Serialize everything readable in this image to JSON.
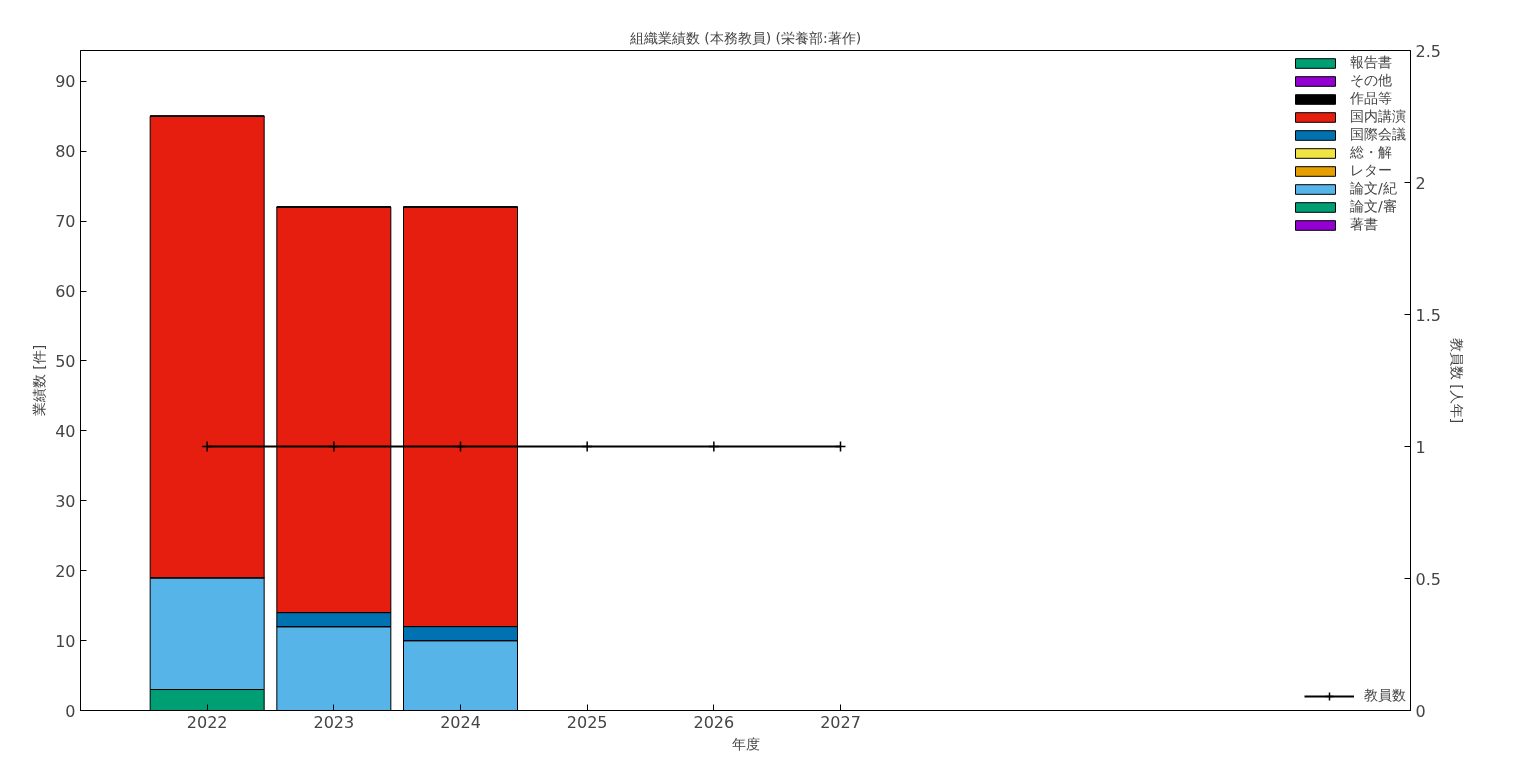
{
  "chart_data": {
    "type": "bar",
    "title": "組織業績数 (本務教員) (栄養部:著作)",
    "xlabel": "年度",
    "ylabel": "業績数 [件]",
    "y2label": "教員数 [人年]",
    "x": [
      2022,
      2023,
      2024
    ],
    "stacked": true,
    "series": [
      {
        "name": "著書",
        "color": "#9400d3",
        "values": [
          0,
          0,
          0
        ]
      },
      {
        "name": "論文/審",
        "color": "#009e73",
        "values": [
          3,
          0,
          0
        ]
      },
      {
        "name": "論文/紀",
        "color": "#56b4e9",
        "values": [
          16,
          12,
          10
        ]
      },
      {
        "name": "レター",
        "color": "#e69f00",
        "values": [
          0,
          0,
          0
        ]
      },
      {
        "name": "総・解",
        "color": "#f0e442",
        "values": [
          0,
          0,
          0
        ]
      },
      {
        "name": "国際会議",
        "color": "#0072b2",
        "values": [
          0,
          2,
          2
        ]
      },
      {
        "name": "国内講演",
        "color": "#e51e10",
        "values": [
          66,
          58,
          60
        ]
      },
      {
        "name": "作品等",
        "color": "#000000",
        "values": [
          0,
          0,
          0
        ]
      },
      {
        "name": "その他",
        "color": "#9400d3",
        "values": [
          0,
          0,
          0
        ]
      },
      {
        "name": "報告書",
        "color": "#009e73",
        "values": [
          0,
          0,
          0
        ]
      },
      {
        "name": "教員数",
        "type": "line",
        "axis": "y2",
        "color": "#000000",
        "marker": "cross",
        "x": [
          2022,
          2023,
          2024,
          2025,
          2026,
          2027
        ],
        "values": [
          1,
          1,
          1,
          1,
          1,
          1
        ]
      }
    ],
    "xlim": [
      2021,
      2031.5
    ],
    "xticks": [
      2022,
      2023,
      2024,
      2025,
      2026,
      2027
    ],
    "ylim": [
      0,
      94.4
    ],
    "yticks": [
      0,
      10,
      20,
      30,
      40,
      50,
      60,
      70,
      80,
      90
    ],
    "y2lim": [
      0,
      2.5
    ],
    "y2ticks": [
      0,
      0.5,
      1,
      1.5,
      2,
      2.5
    ],
    "grid": false,
    "legend": "top right"
  }
}
